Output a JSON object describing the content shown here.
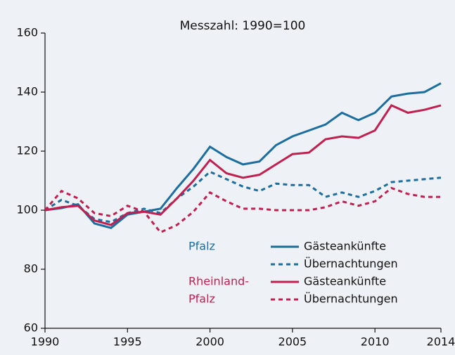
{
  "chart_data": {
    "type": "line",
    "title": "Messzahl: 1990=100",
    "x": [
      1990,
      1991,
      1992,
      1993,
      1994,
      1995,
      1996,
      1997,
      1998,
      1999,
      2000,
      2001,
      2002,
      2003,
      2004,
      2005,
      2006,
      2007,
      2008,
      2009,
      2010,
      2011,
      2012,
      2013,
      2014
    ],
    "xlim": [
      1990,
      2014
    ],
    "xticks": [
      1990,
      1995,
      2000,
      2005,
      2010,
      2014
    ],
    "ylim": [
      60,
      160
    ],
    "yticks": [
      60,
      80,
      100,
      120,
      140,
      160
    ],
    "grid": false,
    "groups": [
      {
        "label_lines": [
          "Pfalz"
        ],
        "color": "#1b6e9e",
        "series": [
          {
            "name": "Gästeankünfte",
            "style": "solid",
            "values": [
              100,
              100.7,
              102,
              95.5,
              94,
              98.5,
              99.5,
              100.5,
              107.5,
              114,
              121.5,
              118,
              115.5,
              116.5,
              122,
              125,
              127,
              129,
              133,
              130.5,
              133,
              138.5,
              139.5,
              140,
              143
            ]
          },
          {
            "name": "Übernachtungen",
            "style": "dotted",
            "values": [
              100,
              103.5,
              101.5,
              97,
              96,
              99,
              100.5,
              99,
              104,
              108,
              113,
              110.5,
              108,
              106.5,
              109,
              108.5,
              108.5,
              104.5,
              106,
              104.5,
              106.5,
              109.5,
              110,
              110.5,
              111
            ]
          }
        ]
      },
      {
        "label_lines": [
          "Rheinland-",
          "Pfalz"
        ],
        "color": "#c0204f",
        "series": [
          {
            "name": "Gästeankünfte",
            "style": "solid",
            "values": [
              100,
              101,
              101.5,
              96.5,
              95,
              99,
              99.5,
              98.5,
              104,
              110,
              117,
              112.5,
              111,
              112,
              115.5,
              119,
              119.5,
              124,
              125,
              124.5,
              127,
              135.5,
              133,
              134,
              135.5
            ]
          },
          {
            "name": "Übernachtungen",
            "style": "dotted",
            "values": [
              100,
              106.5,
              104,
              99,
              98,
              101.5,
              99.5,
              92.5,
              95,
              99.5,
              106,
              103,
              100.5,
              100.5,
              100,
              100,
              100,
              101,
              103,
              101.5,
              103,
              107.5,
              105.5,
              104.5,
              104.5
            ]
          }
        ]
      }
    ]
  }
}
